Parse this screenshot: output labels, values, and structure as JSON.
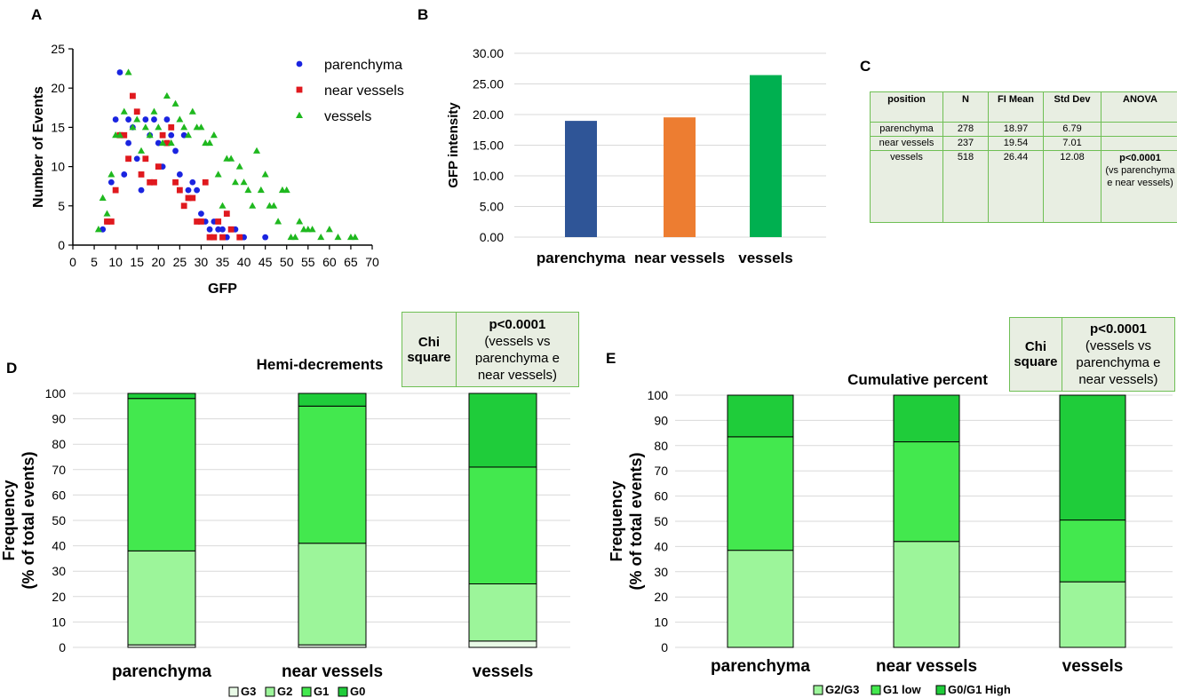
{
  "panel_letters": {
    "a": "A",
    "b": "B",
    "c": "C",
    "d": "D",
    "e": "E"
  },
  "table_c": {
    "headers": [
      "position",
      "N",
      "FI Mean",
      "Std Dev",
      "ANOVA"
    ],
    "rows": [
      [
        "parenchyma",
        "278",
        "18.97",
        "6.79",
        ""
      ],
      [
        "near vessels",
        "237",
        "19.54",
        "7.01",
        ""
      ],
      [
        "vessels",
        "518",
        "26.44",
        "12.08",
        ""
      ]
    ],
    "anova_bold": "p<0.0001",
    "anova_note": "(vs parenchyma e near vessels)"
  },
  "chi_d": {
    "label": "Chi square",
    "p": "p<0.0001",
    "note": "(vessels vs parenchyma e near vessels)"
  },
  "chi_e": {
    "label": "Chi square",
    "p": "p<0.0001",
    "note": "(vessels vs parenchyma e near vessels)"
  },
  "chart_data": [
    {
      "panel": "A",
      "type": "scatter",
      "title": "",
      "xlabel": "GFP",
      "ylabel": "Number of Events",
      "xlim": [
        0,
        70
      ],
      "ylim": [
        0,
        25
      ],
      "xticks": [
        0,
        5,
        10,
        15,
        20,
        25,
        30,
        35,
        40,
        45,
        50,
        55,
        60,
        65,
        70
      ],
      "yticks": [
        0,
        5,
        10,
        15,
        20,
        25
      ],
      "legend_position": "top-right",
      "series": [
        {
          "name": "parenchyma",
          "color": "#1a24e0",
          "marker": "circle",
          "points": [
            [
              7,
              2
            ],
            [
              8,
              3
            ],
            [
              9,
              8
            ],
            [
              10,
              16
            ],
            [
              11,
              22
            ],
            [
              12,
              9
            ],
            [
              13,
              13
            ],
            [
              13,
              16
            ],
            [
              14,
              15
            ],
            [
              15,
              11
            ],
            [
              16,
              7
            ],
            [
              17,
              16
            ],
            [
              18,
              14
            ],
            [
              19,
              16
            ],
            [
              20,
              13
            ],
            [
              21,
              10
            ],
            [
              22,
              16
            ],
            [
              23,
              14
            ],
            [
              24,
              12
            ],
            [
              25,
              9
            ],
            [
              26,
              14
            ],
            [
              27,
              7
            ],
            [
              28,
              8
            ],
            [
              29,
              7
            ],
            [
              30,
              4
            ],
            [
              31,
              3
            ],
            [
              32,
              2
            ],
            [
              33,
              3
            ],
            [
              34,
              2
            ],
            [
              35,
              2
            ],
            [
              36,
              1
            ],
            [
              38,
              2
            ],
            [
              40,
              1
            ],
            [
              45,
              1
            ]
          ]
        },
        {
          "name": "near vessels",
          "color": "#e0191e",
          "marker": "square",
          "points": [
            [
              8,
              3
            ],
            [
              9,
              3
            ],
            [
              10,
              7
            ],
            [
              11,
              14
            ],
            [
              12,
              14
            ],
            [
              13,
              11
            ],
            [
              14,
              19
            ],
            [
              15,
              17
            ],
            [
              16,
              9
            ],
            [
              17,
              11
            ],
            [
              18,
              8
            ],
            [
              19,
              8
            ],
            [
              20,
              10
            ],
            [
              21,
              14
            ],
            [
              22,
              13
            ],
            [
              23,
              15
            ],
            [
              24,
              8
            ],
            [
              25,
              7
            ],
            [
              26,
              5
            ],
            [
              27,
              6
            ],
            [
              28,
              6
            ],
            [
              29,
              3
            ],
            [
              30,
              3
            ],
            [
              31,
              8
            ],
            [
              32,
              1
            ],
            [
              33,
              1
            ],
            [
              34,
              3
            ],
            [
              35,
              1
            ],
            [
              36,
              4
            ],
            [
              37,
              2
            ],
            [
              39,
              1
            ]
          ]
        },
        {
          "name": "vessels",
          "color": "#1fb81f",
          "marker": "triangle",
          "points": [
            [
              6,
              2
            ],
            [
              7,
              6
            ],
            [
              8,
              4
            ],
            [
              9,
              9
            ],
            [
              10,
              14
            ],
            [
              11,
              14
            ],
            [
              12,
              17
            ],
            [
              13,
              22
            ],
            [
              14,
              15
            ],
            [
              15,
              16
            ],
            [
              16,
              12
            ],
            [
              17,
              15
            ],
            [
              18,
              14
            ],
            [
              19,
              17
            ],
            [
              20,
              15
            ],
            [
              21,
              13
            ],
            [
              22,
              19
            ],
            [
              23,
              13
            ],
            [
              24,
              18
            ],
            [
              25,
              16
            ],
            [
              26,
              15
            ],
            [
              27,
              14
            ],
            [
              28,
              17
            ],
            [
              29,
              15
            ],
            [
              30,
              15
            ],
            [
              31,
              13
            ],
            [
              32,
              13
            ],
            [
              33,
              14
            ],
            [
              34,
              9
            ],
            [
              35,
              5
            ],
            [
              36,
              11
            ],
            [
              37,
              11
            ],
            [
              38,
              8
            ],
            [
              39,
              10
            ],
            [
              40,
              8
            ],
            [
              41,
              7
            ],
            [
              42,
              5
            ],
            [
              43,
              12
            ],
            [
              44,
              7
            ],
            [
              45,
              9
            ],
            [
              46,
              5
            ],
            [
              47,
              5
            ],
            [
              48,
              3
            ],
            [
              49,
              7
            ],
            [
              50,
              7
            ],
            [
              51,
              1
            ],
            [
              52,
              1
            ],
            [
              53,
              3
            ],
            [
              54,
              2
            ],
            [
              55,
              2
            ],
            [
              56,
              2
            ],
            [
              58,
              1
            ],
            [
              60,
              2
            ],
            [
              62,
              1
            ],
            [
              65,
              1
            ],
            [
              66,
              1
            ]
          ]
        }
      ]
    },
    {
      "panel": "B",
      "type": "bar",
      "title": "",
      "ylabel": "GFP intensity",
      "categories": [
        "parenchyma",
        "near vessels",
        "vessels"
      ],
      "values": [
        18.97,
        19.54,
        26.44
      ],
      "colors": [
        "#2f5597",
        "#ed7d31",
        "#00b050"
      ],
      "ylim": [
        0,
        30
      ],
      "yticks": [
        "0.00",
        "5.00",
        "10.00",
        "15.00",
        "20.00",
        "25.00",
        "30.00"
      ]
    },
    {
      "panel": "D",
      "type": "bar",
      "stacked": true,
      "title": "Hemi-decrements",
      "ylabel": "Frequency (% of total events)",
      "ylabel_lines": [
        "Frequency",
        "(% of total events)"
      ],
      "categories": [
        "parenchyma",
        "near vessels",
        "vessels"
      ],
      "ylim": [
        0,
        100
      ],
      "yticks": [
        0,
        10,
        20,
        30,
        40,
        50,
        60,
        70,
        80,
        90,
        100
      ],
      "legend_position": "bottom",
      "series": [
        {
          "name": "G3",
          "color": "#e8fae6",
          "values": [
            1,
            1,
            2.5
          ]
        },
        {
          "name": "G2",
          "color": "#9cf59a",
          "values": [
            37,
            40,
            22.5
          ]
        },
        {
          "name": "G1",
          "color": "#43e84e",
          "values": [
            60,
            54,
            46
          ]
        },
        {
          "name": "G0",
          "color": "#1fcc3a",
          "values": [
            2,
            5,
            29
          ]
        }
      ]
    },
    {
      "panel": "E",
      "type": "bar",
      "stacked": true,
      "title": "Cumulative percent",
      "ylabel": "Frequency (% of total events)",
      "ylabel_lines": [
        "Frequency",
        "(% of total events)"
      ],
      "categories": [
        "parenchyma",
        "near vessels",
        "vessels"
      ],
      "ylim": [
        0,
        100
      ],
      "yticks": [
        0,
        10,
        20,
        30,
        40,
        50,
        60,
        70,
        80,
        90,
        100
      ],
      "legend_position": "bottom",
      "series": [
        {
          "name": "G2/G3",
          "color": "#9cf59a",
          "values": [
            38.5,
            42,
            26
          ]
        },
        {
          "name": "G1 low",
          "color": "#43e84e",
          "values": [
            45,
            39.5,
            24.5
          ]
        },
        {
          "name": "G0/G1 High",
          "color": "#1fcc3a",
          "values": [
            16.5,
            18.5,
            49.5
          ]
        }
      ]
    }
  ]
}
